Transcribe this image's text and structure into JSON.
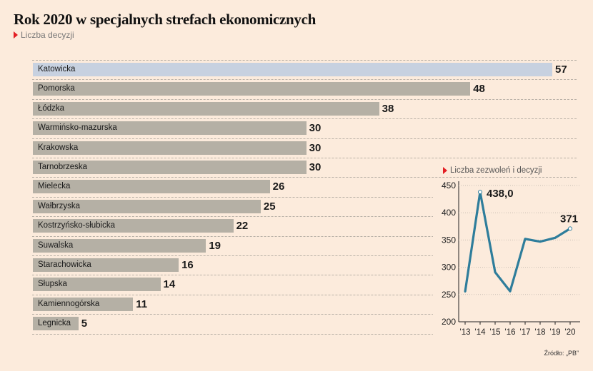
{
  "title": "Rok 2020 w specjalnych strefach ekonomicznych",
  "subtitle": "Liczba decyzji",
  "source": "Źródło: „PB”",
  "colors": {
    "bar": "#b5b0a5",
    "highlight": "#c7d1e0",
    "line": "#2e7d9b",
    "accent": "#e31e24"
  },
  "chart_data": [
    {
      "type": "bar",
      "orientation": "horizontal",
      "title": "Rok 2020 w specjalnych strefach ekonomicznych",
      "subtitle": "Liczba decyzji",
      "categories": [
        "Katowicka",
        "Pomorska",
        "Łódzka",
        "Warmińsko-mazurska",
        "Krakowska",
        "Tarnobrzeska",
        "Mielecka",
        "Wałbrzyska",
        "Kostrzyńsko-słubicka",
        "Suwalska",
        "Starachowicka",
        "Słupska",
        "Kamiennogórska",
        "Legnicka"
      ],
      "values": [
        57,
        48,
        38,
        30,
        30,
        30,
        26,
        25,
        22,
        19,
        16,
        14,
        11,
        5
      ],
      "highlight": "Katowicka",
      "xlim": [
        0,
        59
      ]
    },
    {
      "type": "line",
      "title": "Liczba zezwoleń i decyzji",
      "x": [
        "'13",
        "'14",
        "'15",
        "'16",
        "'17",
        "'18",
        "'19",
        "'20"
      ],
      "values": [
        255,
        438,
        291,
        256,
        352,
        347,
        354,
        371
      ],
      "labels": [
        {
          "x": "'14",
          "text": "438,0"
        },
        {
          "x": "'20",
          "text": "371"
        }
      ],
      "ylim": [
        200,
        450
      ],
      "yticks": [
        "450",
        "400",
        "350",
        "300",
        "250",
        "200"
      ]
    }
  ]
}
